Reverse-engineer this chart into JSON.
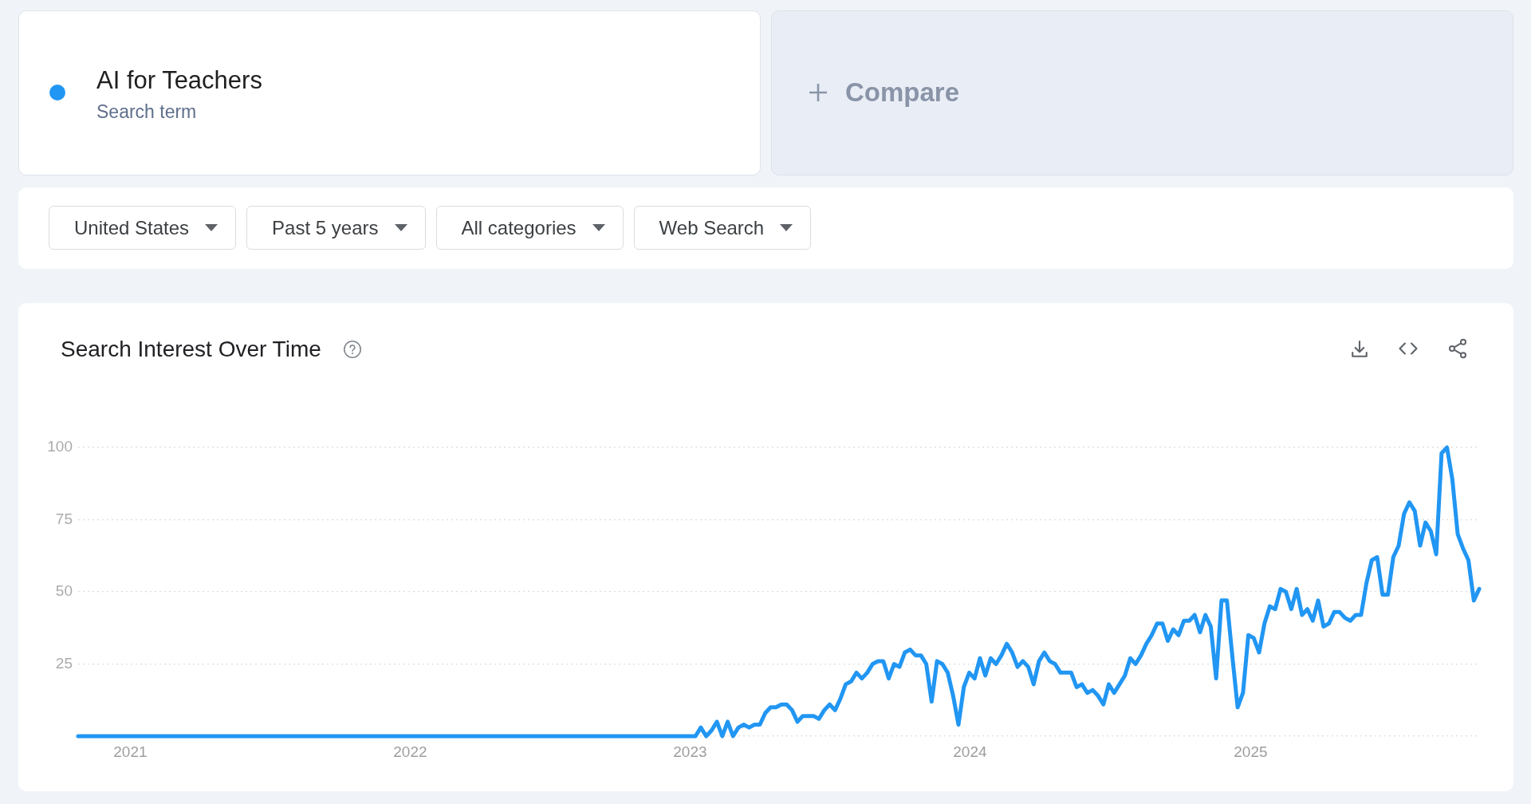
{
  "chart_data": {
    "type": "line",
    "title": "Search Interest Over Time",
    "annotations": [
      "Search term",
      "Compare",
      "United States",
      "Past 5 years",
      "All categories",
      "Web Search"
    ],
    "legend": "top left",
    "grid": "y",
    "xlim": [
      "2020-10-25",
      "2025-10-26"
    ],
    "xticks": [
      "2021",
      "2022",
      "2023",
      "2024",
      "2025"
    ],
    "ylim": [
      0,
      100
    ],
    "yticks": [
      {
        "value": 0,
        "label": null
      },
      25,
      50,
      75,
      100
    ],
    "x": [
      "2020-10-25",
      "2023-01-08",
      "2023-01-15",
      "2023-01-22",
      "2023-01-29",
      "2023-02-05",
      "2023-02-12",
      "2023-02-19",
      "2023-02-26",
      "2023-03-05",
      "2023-03-12",
      "2023-03-19",
      "2023-03-26",
      "2023-04-02",
      "2023-04-09",
      "2023-04-16",
      "2023-04-23",
      "2023-04-30",
      "2023-05-07",
      "2023-05-14",
      "2023-05-21",
      "2023-05-28",
      "2023-06-04",
      "2023-06-11",
      "2023-06-18",
      "2023-06-25",
      "2023-07-02",
      "2023-07-09",
      "2023-07-16",
      "2023-07-23",
      "2023-07-30",
      "2023-08-06",
      "2023-08-13",
      "2023-08-20",
      "2023-08-27",
      "2023-09-03",
      "2023-09-10",
      "2023-09-17",
      "2023-09-24",
      "2023-10-01",
      "2023-10-08",
      "2023-10-15",
      "2023-10-22",
      "2023-10-29",
      "2023-11-05",
      "2023-11-12",
      "2023-11-19",
      "2023-11-26",
      "2023-12-03",
      "2023-12-10",
      "2023-12-17",
      "2023-12-24",
      "2023-12-31",
      "2024-01-07",
      "2024-01-14",
      "2024-01-21",
      "2024-01-28",
      "2024-02-04",
      "2024-02-11",
      "2024-02-18",
      "2024-02-25",
      "2024-03-03",
      "2024-03-10",
      "2024-03-17",
      "2024-03-24",
      "2024-03-31",
      "2024-04-07",
      "2024-04-14",
      "2024-04-21",
      "2024-04-28",
      "2024-05-05",
      "2024-05-12",
      "2024-05-19",
      "2024-05-26",
      "2024-06-02",
      "2024-06-09",
      "2024-06-16",
      "2024-06-23",
      "2024-06-30",
      "2024-07-07",
      "2024-07-14",
      "2024-07-21",
      "2024-07-28",
      "2024-08-04",
      "2024-08-11",
      "2024-08-18",
      "2024-08-25",
      "2024-09-01",
      "2024-09-08",
      "2024-09-15",
      "2024-09-22",
      "2024-09-29",
      "2024-10-06",
      "2024-10-13",
      "2024-10-20",
      "2024-10-27",
      "2024-11-03",
      "2024-11-10",
      "2024-11-17",
      "2024-11-24",
      "2024-12-01",
      "2024-12-08",
      "2024-12-15",
      "2024-12-22",
      "2024-12-29",
      "2025-01-05",
      "2025-01-12",
      "2025-01-19",
      "2025-01-26",
      "2025-02-02",
      "2025-02-09",
      "2025-02-16",
      "2025-02-23",
      "2025-03-02",
      "2025-03-09",
      "2025-03-16",
      "2025-03-23",
      "2025-03-30",
      "2025-04-06",
      "2025-04-13",
      "2025-04-20",
      "2025-04-27",
      "2025-05-04",
      "2025-05-11",
      "2025-05-18",
      "2025-05-25",
      "2025-06-01",
      "2025-06-08",
      "2025-06-15",
      "2025-06-22",
      "2025-06-29",
      "2025-07-06",
      "2025-07-13",
      "2025-07-20",
      "2025-07-27",
      "2025-08-03",
      "2025-08-10",
      "2025-08-17",
      "2025-08-24",
      "2025-08-31",
      "2025-09-07",
      "2025-09-14",
      "2025-09-21",
      "2025-09-28",
      "2025-10-05",
      "2025-10-12",
      "2025-10-19",
      "2025-10-26"
    ],
    "series": [
      {
        "name": "AI for Teachers",
        "color": "#2196f3",
        "values": [
          0,
          0,
          3,
          0,
          2,
          5,
          0,
          5,
          0,
          3,
          4,
          3,
          4,
          4,
          8,
          10,
          10,
          11,
          11,
          9,
          5,
          7,
          7,
          7,
          6,
          9,
          11,
          9,
          13,
          18,
          19,
          22,
          20,
          22,
          25,
          26,
          26,
          20,
          25,
          24,
          29,
          30,
          28,
          28,
          25,
          12,
          26,
          25,
          22,
          14,
          4,
          17,
          22,
          20,
          27,
          21,
          27,
          25,
          28,
          32,
          29,
          24,
          26,
          24,
          18,
          26,
          29,
          26,
          25,
          22,
          22,
          22,
          17,
          18,
          15,
          16,
          14,
          11,
          18,
          15,
          18,
          21,
          27,
          25,
          28,
          32,
          35,
          39,
          39,
          33,
          37,
          35,
          40,
          40,
          42,
          36,
          42,
          38,
          20,
          47,
          47,
          28,
          10,
          15,
          35,
          34,
          29,
          39,
          45,
          44,
          51,
          50,
          44,
          51,
          42,
          44,
          40,
          47,
          38,
          39,
          43,
          43,
          41,
          40,
          42,
          42,
          53,
          61,
          62,
          49,
          49,
          62,
          66,
          77,
          81,
          78,
          66,
          74,
          71,
          63,
          98,
          100,
          89,
          70,
          65,
          61,
          47,
          51
        ]
      }
    ]
  }
}
